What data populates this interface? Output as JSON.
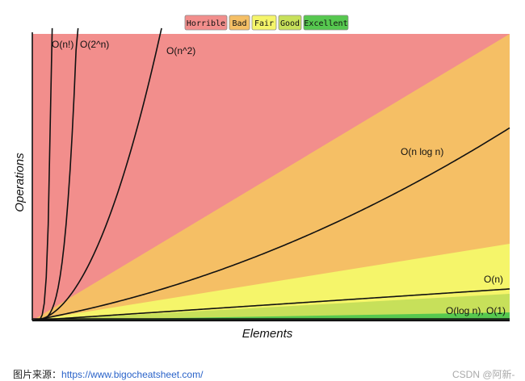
{
  "chart_data": {
    "type": "area",
    "title": "",
    "xlabel": "Elements",
    "ylabel": "Operations",
    "grid": false,
    "legend_position": "top-center",
    "legend": [
      {
        "label": "Horrible",
        "color": "#f28e8c"
      },
      {
        "label": "Bad",
        "color": "#f5bf65"
      },
      {
        "label": "Fair",
        "color": "#f5f56a"
      },
      {
        "label": "Good",
        "color": "#c7e05a"
      },
      {
        "label": "Excellent",
        "color": "#56c84f"
      }
    ],
    "zones": [
      {
        "name": "Horrible",
        "color": "#f28e8c"
      },
      {
        "name": "Bad",
        "color": "#f5bf65"
      },
      {
        "name": "Fair",
        "color": "#f5f56a"
      },
      {
        "name": "Good",
        "color": "#c7e05a"
      },
      {
        "name": "Excellent",
        "color": "#56c84f"
      }
    ],
    "series": [
      {
        "name": "O(n!)",
        "label": "O(n!)"
      },
      {
        "name": "O(2^n)",
        "label": "O(2^n)"
      },
      {
        "name": "O(n^2)",
        "label": "O(n^2)"
      },
      {
        "name": "O(n log n)",
        "label": "O(n log n)"
      },
      {
        "name": "O(n)",
        "label": "O(n)"
      },
      {
        "name": "O(log n), O(1)",
        "label": "O(log n), O(1)"
      }
    ]
  },
  "caption": {
    "prefix": "图片来源：",
    "link": "https://www.bigocheatsheet.com/"
  },
  "watermark": "CSDN @阿新-"
}
